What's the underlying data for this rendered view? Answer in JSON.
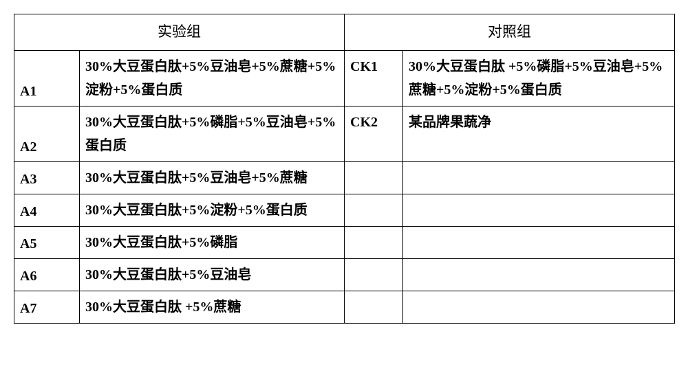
{
  "table": {
    "headers": {
      "experimental": "实验组",
      "control": "对照组"
    },
    "rows": [
      {
        "a_code": "A1",
        "a_text": "30%大豆蛋白肽+5%豆油皂+5%蔗糖+5%淀粉+5%蛋白质",
        "ck_code": "CK1",
        "ck_text": "30%大豆蛋白肽 +5%磷脂+5%豆油皂+5%蔗糖+5%淀粉+5%蛋白质"
      },
      {
        "a_code": "A2",
        "a_text": "30%大豆蛋白肽+5%磷脂+5%豆油皂+5%蛋白质",
        "ck_code": "CK2",
        "ck_text": "某品牌果蔬净"
      },
      {
        "a_code": "A3",
        "a_text": "30%大豆蛋白肽+5%豆油皂+5%蔗糖",
        "ck_code": "",
        "ck_text": ""
      },
      {
        "a_code": "A4",
        "a_text": "30%大豆蛋白肽+5%淀粉+5%蛋白质",
        "ck_code": "",
        "ck_text": ""
      },
      {
        "a_code": "A5",
        "a_text": "30%大豆蛋白肽+5%磷脂",
        "ck_code": "",
        "ck_text": ""
      },
      {
        "a_code": "A6",
        "a_text": "30%大豆蛋白肽+5%豆油皂",
        "ck_code": "",
        "ck_text": ""
      },
      {
        "a_code": "A7",
        "a_text": "30%大豆蛋白肽 +5%蔗糖",
        "ck_code": "",
        "ck_text": ""
      }
    ]
  },
  "style": {
    "border_color": "#000000",
    "background": "#ffffff",
    "font_family": "SimSun",
    "cell_fontsize": 20,
    "header_fontsize": 21,
    "cell_font_weight": "bold",
    "header_font_weight": "normal"
  }
}
